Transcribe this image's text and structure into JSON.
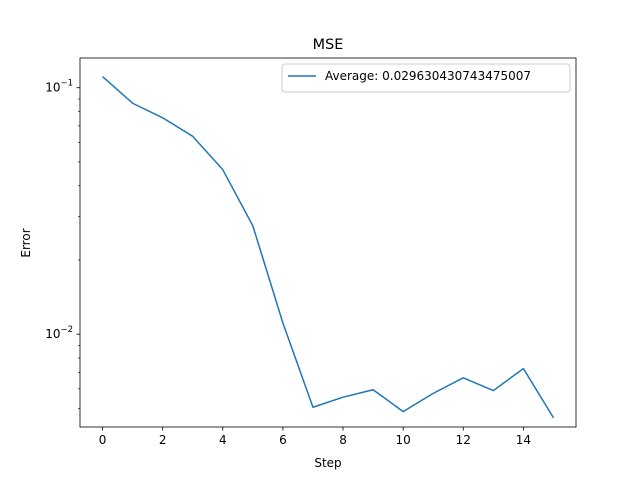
{
  "chart_data": {
    "type": "line",
    "title": "MSE",
    "xlabel": "Step",
    "ylabel": "Error",
    "yscale": "log",
    "xlim": [
      -0.75,
      15.75
    ],
    "ylim": [
      0.0042,
      0.132
    ],
    "grid": false,
    "legend_position": "top-right",
    "x_ticks": [
      0,
      2,
      4,
      6,
      8,
      10,
      12,
      14
    ],
    "x_tick_labels": [
      "0",
      "2",
      "4",
      "6",
      "8",
      "10",
      "12",
      "14"
    ],
    "y_major_ticks": [
      {
        "value": 0.1,
        "base": "10",
        "exp": "−1"
      },
      {
        "value": 0.01,
        "base": "10",
        "exp": "−2"
      }
    ],
    "y_minor_ticks": [
      0.005,
      0.006,
      0.007,
      0.008,
      0.009,
      0.02,
      0.03,
      0.04,
      0.05,
      0.06,
      0.07,
      0.08,
      0.09
    ],
    "series": [
      {
        "name": "Average: 0.029630430743475007",
        "color": "#1f77b4",
        "x": [
          0,
          1,
          2,
          3,
          4,
          5,
          6,
          7,
          8,
          9,
          10,
          11,
          12,
          13,
          14,
          15
        ],
        "y": [
          0.111,
          0.0865,
          0.0755,
          0.0635,
          0.0465,
          0.0275,
          0.0111,
          0.00505,
          0.00555,
          0.00595,
          0.00485,
          0.00575,
          0.00665,
          0.0059,
          0.00725,
          0.00458
        ]
      }
    ]
  }
}
